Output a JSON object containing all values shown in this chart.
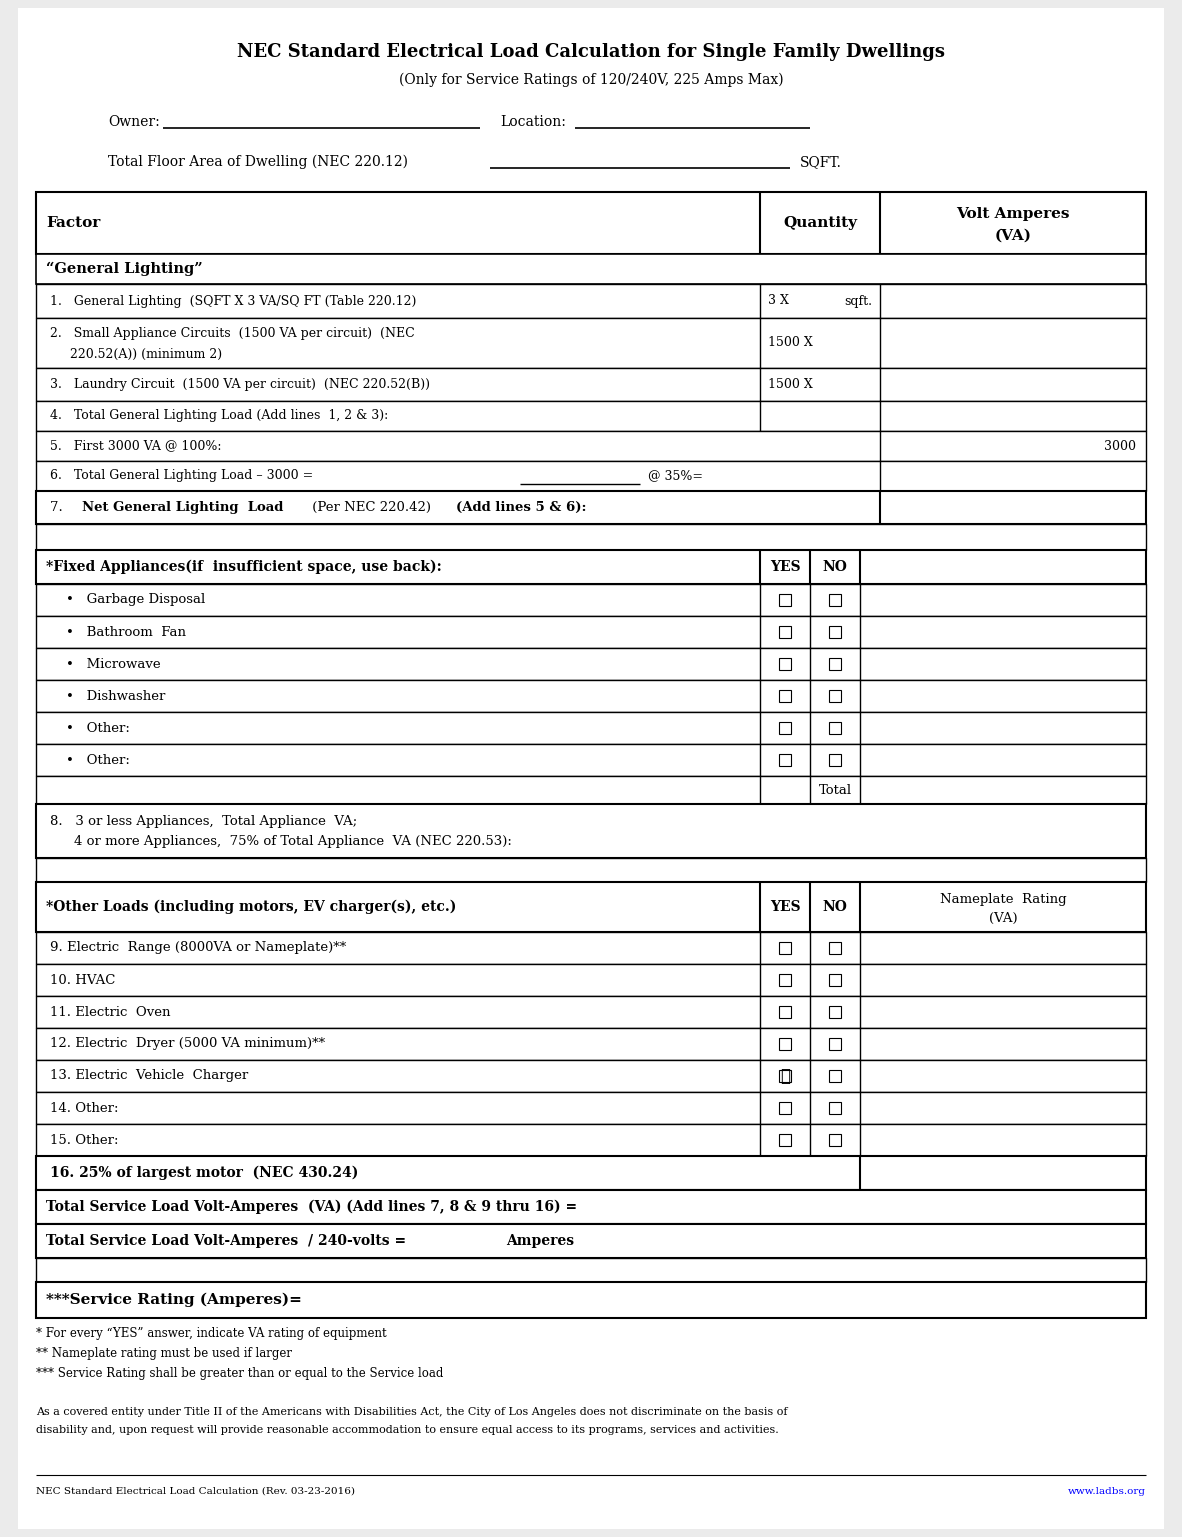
{
  "title": "NEC Standard Electrical Load Calculation for Single Family Dwellings",
  "subtitle": "(Only for Service Ratings of 120/240V, 225 Amps Max)",
  "owner_label": "Owner:",
  "location_label": "Location:",
  "floor_area_label": "Total Floor Area of Dwelling (NEC 220.12)",
  "sqft_label": "SQFT.",
  "bg_color": "#ebebeb",
  "form_bg": "#ffffff",
  "footer_note1": "* For every “YES” answer, indicate VA rating of equipment",
  "footer_note2": "** Nameplate rating must be used if larger",
  "footer_note3": "*** Service Rating shall be greater than or equal to the Service load",
  "footer_ada1": "As a covered entity under Title II of the Americans with Disabilities Act, the City of Los Angeles does not discriminate on the basis of",
  "footer_ada2": "disability and, upon request will provide reasonable accommodation to ensure equal access to its programs, services and activities.",
  "footer_rev": "NEC Standard Electrical Load Calculation (Rev. 03-23-2016)",
  "footer_url": "www.ladbs.org"
}
